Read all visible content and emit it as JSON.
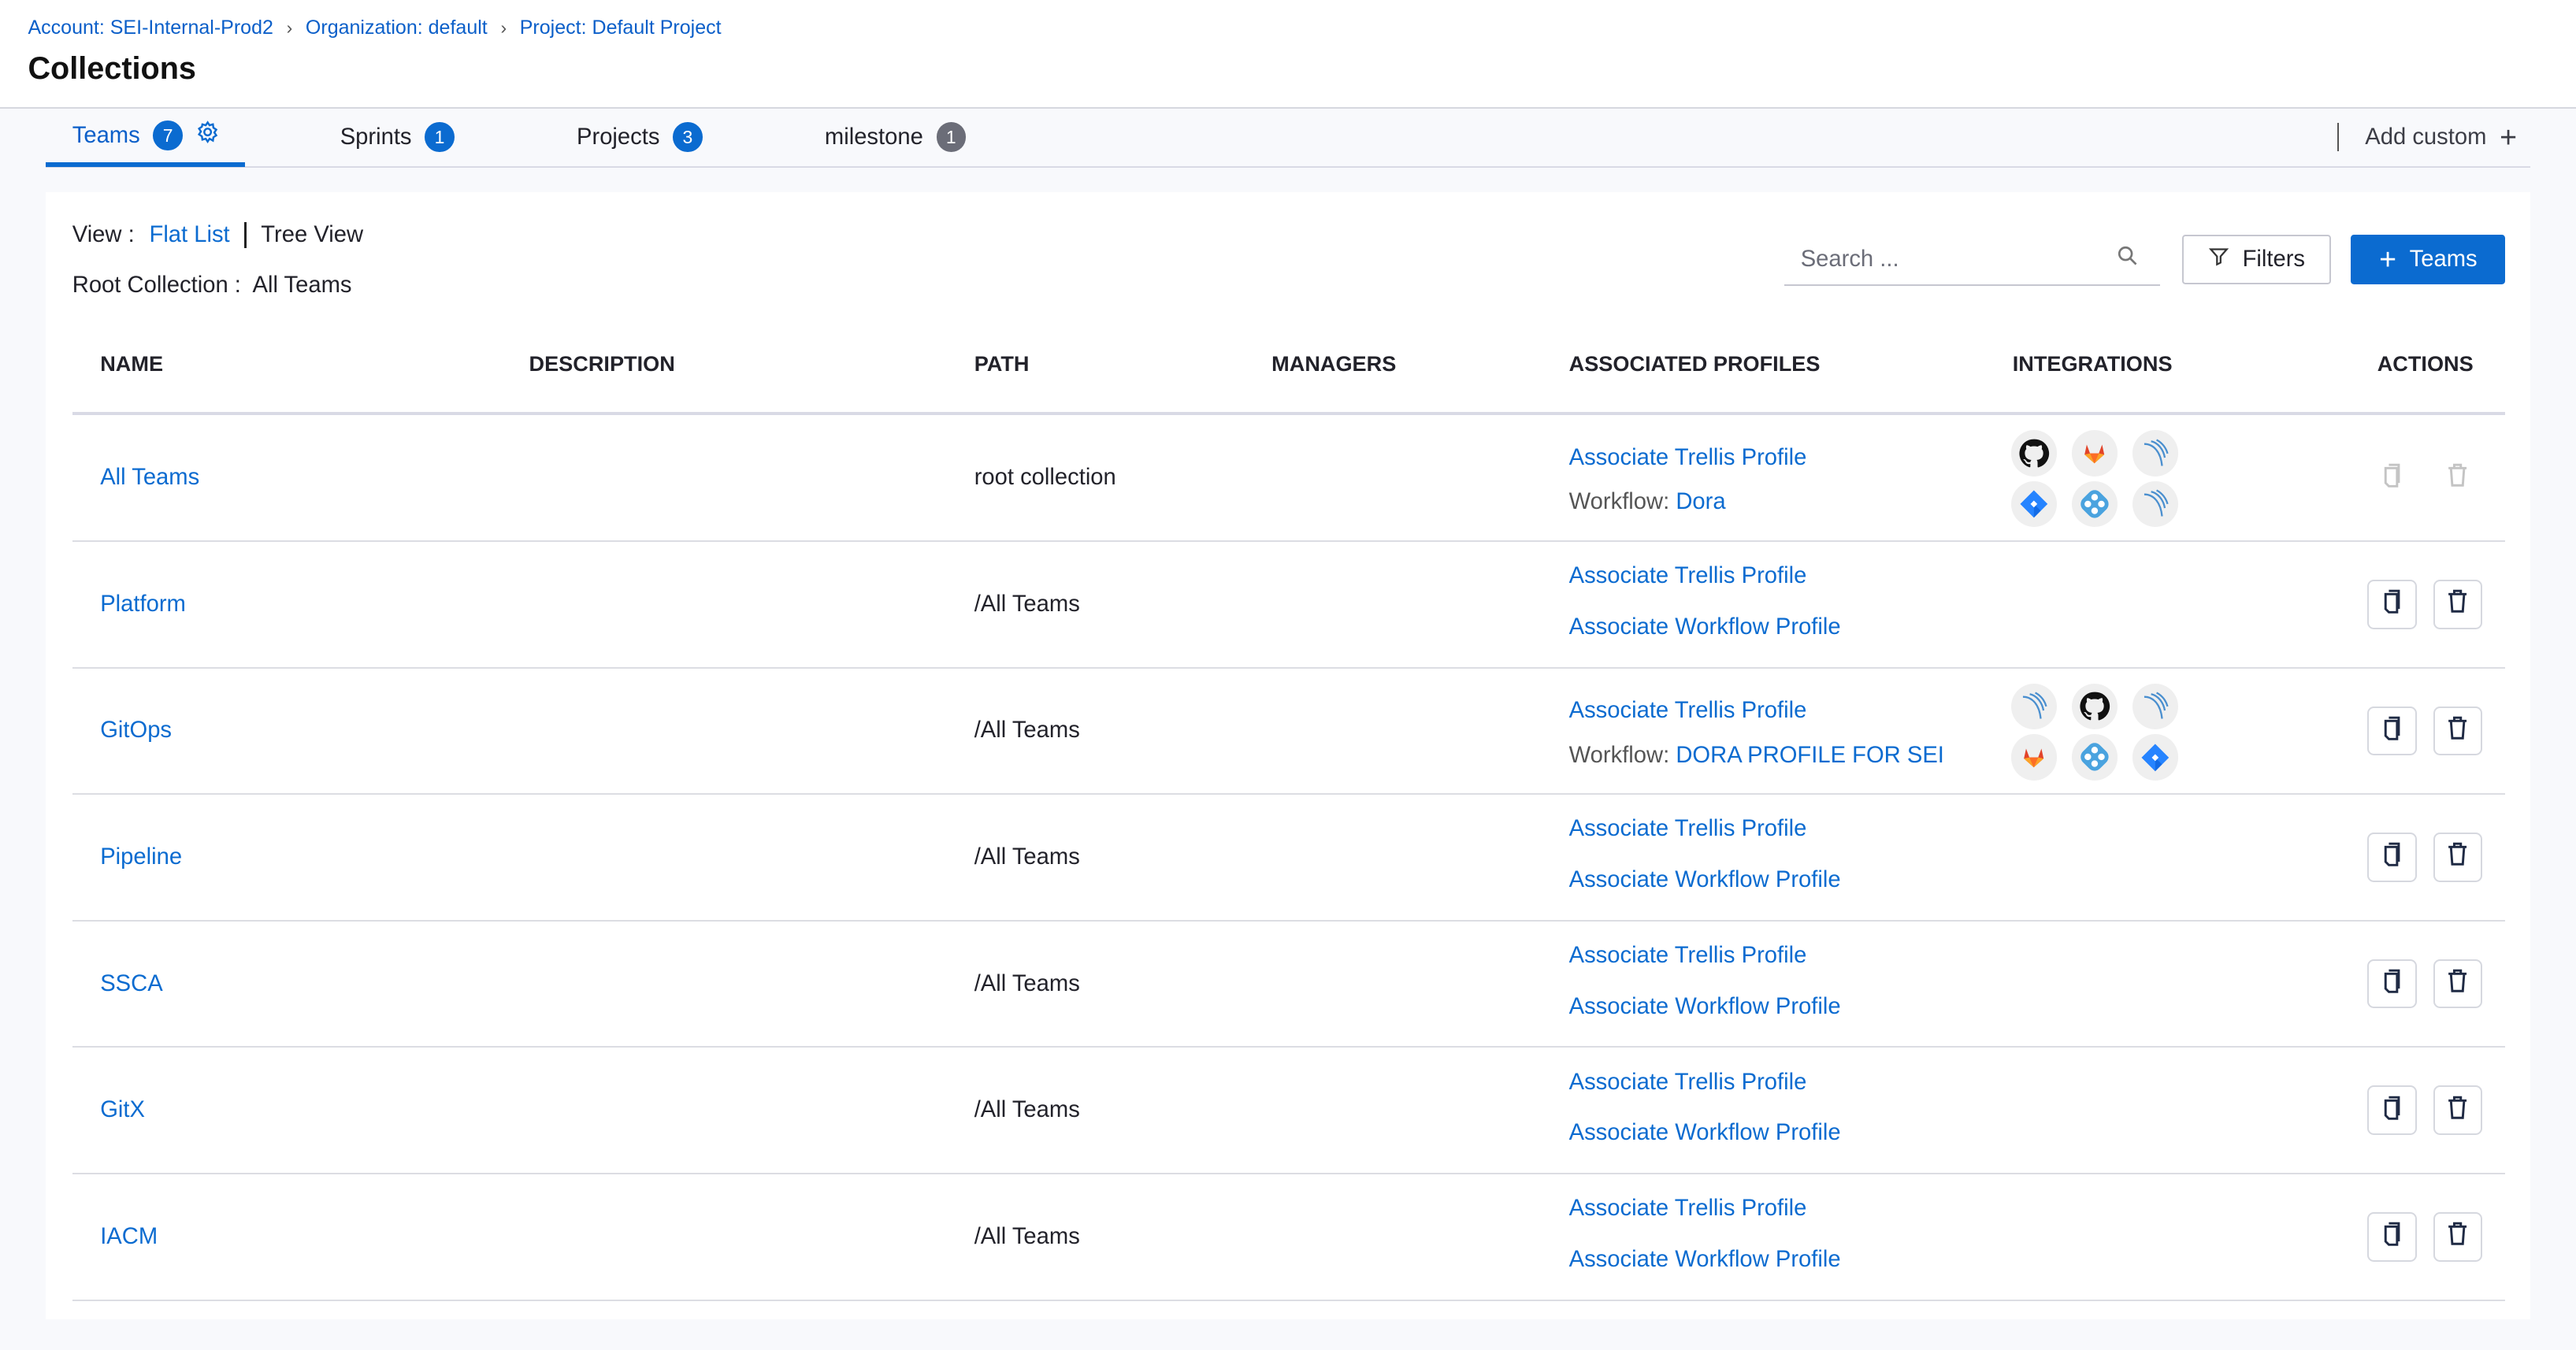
{
  "breadcrumb": [
    "Account: SEI-Internal-Prod2",
    "Organization: default",
    "Project: Default Project"
  ],
  "page_title": "Collections",
  "tabs": [
    {
      "label": "Teams",
      "count": "7",
      "active": true
    },
    {
      "label": "Sprints",
      "count": "1"
    },
    {
      "label": "Projects",
      "count": "3"
    },
    {
      "label": "milestone",
      "count": "1"
    }
  ],
  "add_custom": "Add custom",
  "view": {
    "label": "View :",
    "flat": "Flat List",
    "tree": "Tree View",
    "selected": "Flat List"
  },
  "root_collection": {
    "label": "Root Collection :",
    "value": "All Teams"
  },
  "search": {
    "placeholder": "Search ..."
  },
  "filters_label": "Filters",
  "add_teams_label": "Teams",
  "colors": {
    "accent": "#0b6bd0",
    "badge_grey": "#6b6d78"
  },
  "columns": [
    "NAME",
    "DESCRIPTION",
    "PATH",
    "MANAGERS",
    "ASSOCIATED PROFILES",
    "INTEGRATIONS",
    "ACTIONS"
  ],
  "rows": [
    {
      "name": "All Teams",
      "description": "",
      "path": "root collection",
      "managers": "",
      "trellis": "Associate Trellis Profile",
      "workflow_prefix": "Workflow:",
      "workflow": "Dora",
      "integrations": [
        "github",
        "gitlab",
        "harness-arc",
        "jira",
        "diamond-dots",
        "harness-arc"
      ],
      "actions_disabled": true
    },
    {
      "name": "Platform",
      "description": "",
      "path": "/All Teams",
      "managers": "",
      "trellis": "Associate Trellis Profile",
      "workflow_link": "Associate Workflow Profile",
      "integrations": []
    },
    {
      "name": "GitOps",
      "description": "",
      "path": "/All Teams",
      "managers": "",
      "trellis": "Associate Trellis Profile",
      "workflow_prefix": "Workflow:",
      "workflow": "DORA PROFILE FOR SEI",
      "integrations": [
        "harness-arc",
        "github",
        "harness-arc",
        "gitlab",
        "diamond-dots",
        "jira"
      ]
    },
    {
      "name": "Pipeline",
      "description": "",
      "path": "/All Teams",
      "managers": "",
      "trellis": "Associate Trellis Profile",
      "workflow_link": "Associate Workflow Profile",
      "integrations": []
    },
    {
      "name": "SSCA",
      "description": "",
      "path": "/All Teams",
      "managers": "",
      "trellis": "Associate Trellis Profile",
      "workflow_link": "Associate Workflow Profile",
      "integrations": []
    },
    {
      "name": "GitX",
      "description": "",
      "path": "/All Teams",
      "managers": "",
      "trellis": "Associate Trellis Profile",
      "workflow_link": "Associate Workflow Profile",
      "integrations": []
    },
    {
      "name": "IACM",
      "description": "",
      "path": "/All Teams",
      "managers": "",
      "trellis": "Associate Trellis Profile",
      "workflow_link": "Associate Workflow Profile",
      "integrations": []
    }
  ]
}
